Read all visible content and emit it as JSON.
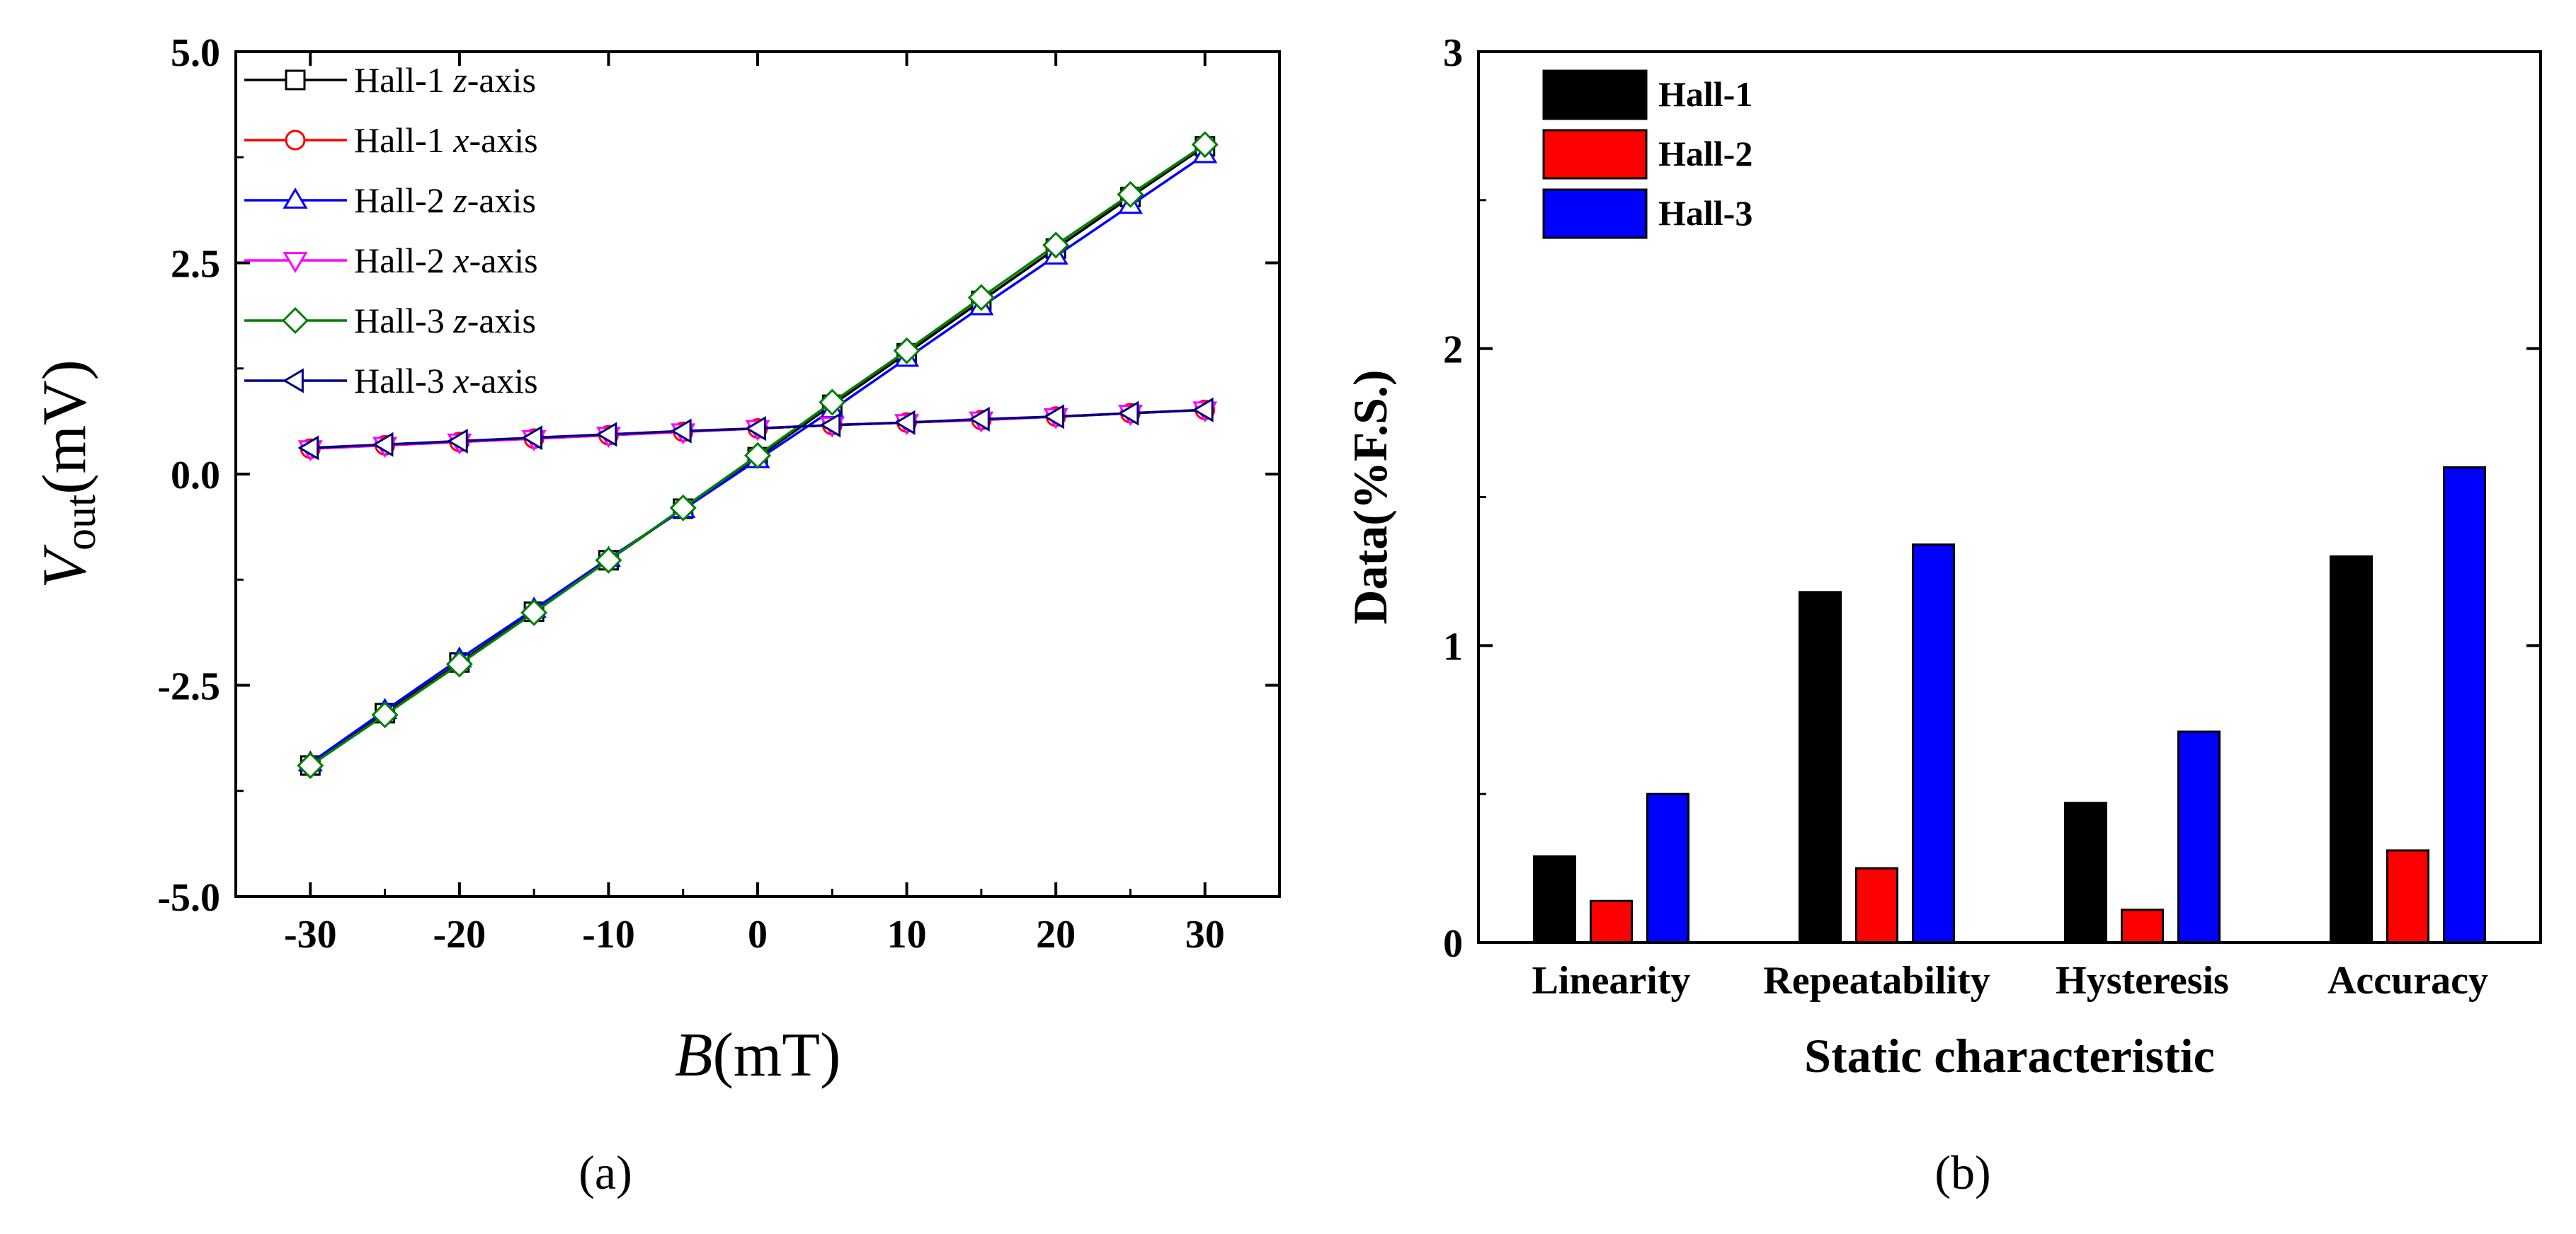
{
  "panel_labels": {
    "a": "(a)",
    "b": "(b)"
  },
  "chart_data": [
    {
      "type": "line",
      "panel": "(a)",
      "xlabel_italic": "B",
      "xlabel_rest": "(mT)",
      "ylabel_italic": "V",
      "ylabel_sub": "out",
      "ylabel_rest": "(mV)",
      "xlim": [
        -35,
        35
      ],
      "ylim": [
        -5,
        5
      ],
      "xticks": [
        -30,
        -20,
        -10,
        0,
        10,
        20,
        30
      ],
      "xtick_labels": [
        "-30",
        "-20",
        "-10",
        "0",
        "10",
        "20",
        "30"
      ],
      "yticks": [
        -5,
        -2.5,
        0,
        2.5,
        5
      ],
      "ytick_labels": [
        "-5.0",
        "-2.5",
        "0.0",
        "2.5",
        "5.0"
      ],
      "grid": false,
      "legend_position": "top-left",
      "x": [
        -30,
        -25,
        -20,
        -15,
        -10,
        -5,
        0,
        5,
        10,
        15,
        20,
        25,
        30
      ],
      "series": [
        {
          "name_prefix": "Hall-1 ",
          "name_axis": "z",
          "name_suffix": "-axis",
          "color": "#000000",
          "marker": "square",
          "values": [
            -3.45,
            -2.83,
            -2.23,
            -1.63,
            -1.02,
            -0.41,
            0.2,
            0.82,
            1.43,
            2.05,
            2.67,
            3.28,
            3.88
          ]
        },
        {
          "name_prefix": "Hall-1 ",
          "name_axis": "x",
          "name_suffix": "-axis",
          "color": "#ff0000",
          "marker": "circle",
          "values": [
            0.3,
            0.34,
            0.38,
            0.42,
            0.46,
            0.5,
            0.54,
            0.58,
            0.61,
            0.64,
            0.68,
            0.72,
            0.76
          ]
        },
        {
          "name_prefix": "Hall-2 ",
          "name_axis": "z",
          "name_suffix": "-axis",
          "color": "#0000ff",
          "marker": "triangle-up",
          "values": [
            -3.42,
            -2.8,
            -2.19,
            -1.6,
            -1.0,
            -0.42,
            0.17,
            0.76,
            1.37,
            1.98,
            2.58,
            3.18,
            3.78
          ]
        },
        {
          "name_prefix": "Hall-2 ",
          "name_axis": "x",
          "name_suffix": "-axis",
          "color": "#ff00ff",
          "marker": "triangle-down",
          "values": [
            0.3,
            0.34,
            0.38,
            0.42,
            0.46,
            0.5,
            0.54,
            0.58,
            0.61,
            0.64,
            0.68,
            0.72,
            0.76
          ]
        },
        {
          "name_prefix": "Hall-3 ",
          "name_axis": "z",
          "name_suffix": "-axis",
          "color": "#008000",
          "marker": "diamond",
          "values": [
            -3.45,
            -2.85,
            -2.25,
            -1.64,
            -1.02,
            -0.4,
            0.22,
            0.85,
            1.46,
            2.09,
            2.71,
            3.31,
            3.9
          ]
        },
        {
          "name_prefix": "Hall-3 ",
          "name_axis": "x",
          "name_suffix": "-axis",
          "color": "#000080",
          "marker": "triangle-left",
          "values": [
            0.31,
            0.35,
            0.39,
            0.43,
            0.47,
            0.51,
            0.54,
            0.58,
            0.61,
            0.65,
            0.68,
            0.72,
            0.76
          ]
        }
      ]
    },
    {
      "type": "bar",
      "panel": "(b)",
      "xlabel": "Static characteristic",
      "ylabel": "Data(%F.S.)",
      "categories": [
        "Linearity",
        "Repeatability",
        "Hysteresis",
        "Accuracy"
      ],
      "ylim": [
        0,
        3
      ],
      "yticks": [
        0,
        1,
        2,
        3
      ],
      "ytick_labels": [
        "0",
        "1",
        "2",
        "3"
      ],
      "grid": false,
      "legend_position": "top-left",
      "series": [
        {
          "name": "Hall-1",
          "color": "#000000",
          "values": [
            0.29,
            1.18,
            0.47,
            1.3
          ]
        },
        {
          "name": "Hall-2",
          "color": "#ff0000",
          "values": [
            0.14,
            0.25,
            0.11,
            0.31
          ]
        },
        {
          "name": "Hall-3",
          "color": "#0000ff",
          "values": [
            0.5,
            1.34,
            0.71,
            1.6
          ]
        }
      ]
    }
  ]
}
